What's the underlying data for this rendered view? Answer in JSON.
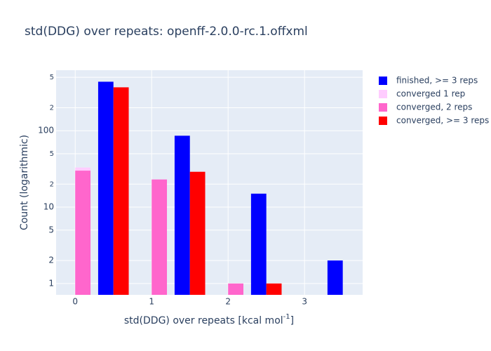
{
  "chart_data": {
    "type": "bar",
    "title": "std(DDG) over repeats: openff-2.0.0-rc.1.offxml",
    "x_label": [
      "std(DDG) over repeats [kcal mol",
      "-1",
      "]"
    ],
    "y_label": "Count (logarithmic)",
    "y_log": true,
    "grid": true,
    "legend": "right",
    "bar_width": 0.2,
    "xlim": [
      -0.25,
      3.76
    ],
    "xticks": [
      0,
      1,
      2,
      3
    ],
    "ylim": [
      0.71,
      620
    ],
    "yticks": [
      1,
      2,
      5,
      10,
      {
        "value": 20,
        "label": "2"
      },
      {
        "value": 50,
        "label": "5"
      },
      100,
      {
        "value": 200,
        "label": "2"
      },
      {
        "value": 500,
        "label": "5"
      }
    ],
    "series": [
      {
        "name": "finished, >= 3 reps",
        "color": "#0000ff",
        "x": [
          0.4,
          1.4,
          2.4,
          3.4
        ],
        "values": [
          438,
          86,
          15,
          2
        ]
      },
      {
        "name": "converged 1 rep",
        "color": "#ffccff",
        "x": [
          0.1
        ],
        "values": [
          33
        ]
      },
      {
        "name": "converged, 2 reps",
        "color": "#ff66cc",
        "x": [
          0.1,
          1.1,
          2.1
        ],
        "values": [
          30,
          23,
          1
        ]
      },
      {
        "name": "converged, >= 3 reps",
        "color": "#ff0000",
        "x": [
          0.6,
          1.6,
          2.6
        ],
        "values": [
          370,
          29,
          1
        ]
      }
    ]
  }
}
